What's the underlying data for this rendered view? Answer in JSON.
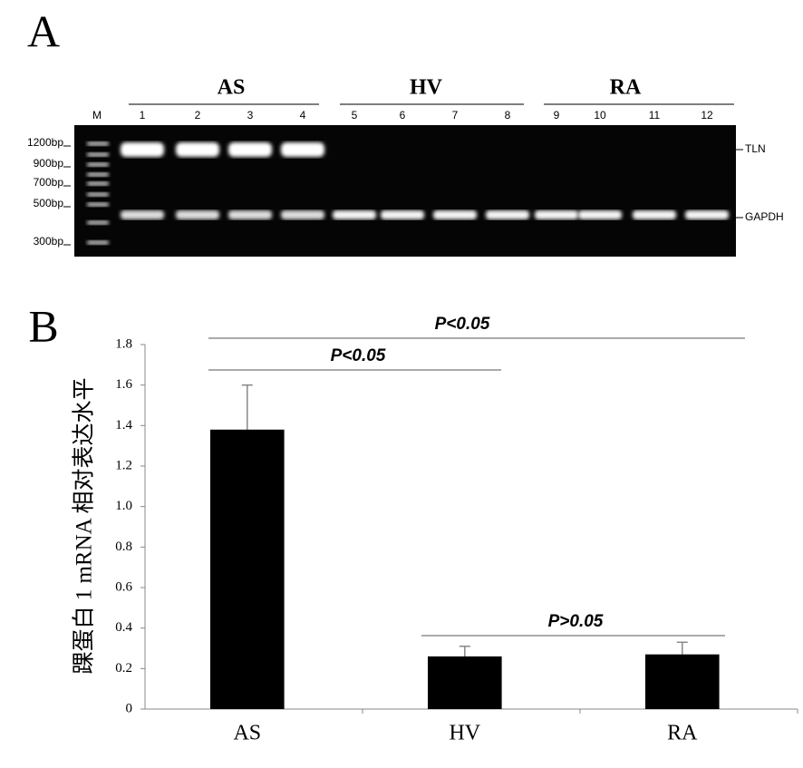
{
  "panel_a": {
    "label": "A",
    "groups": [
      "AS",
      "HV",
      "RA"
    ],
    "lanes": [
      "M",
      "1",
      "2",
      "3",
      "4",
      "5",
      "6",
      "7",
      "8",
      "9",
      "10",
      "11",
      "12"
    ],
    "markers": [
      "1200bp",
      "900bp",
      "700bp",
      "500bp",
      "300bp"
    ],
    "bands": [
      "TLN",
      "GAPDH"
    ]
  },
  "chart_data": {
    "type": "bar",
    "label": "B",
    "y_label": "踝蛋白 1 mRNA 相对表达水平",
    "categories": [
      "AS",
      "HV",
      "RA"
    ],
    "values": [
      1.38,
      0.26,
      0.27
    ],
    "errors": [
      0.22,
      0.05,
      0.06
    ],
    "color": "#000000",
    "ylim": [
      0,
      1.8
    ],
    "yticks": [
      0,
      0.2,
      0.4,
      0.6,
      0.8,
      {
        "value": 1,
        "label": "1.0"
      },
      1.2,
      1.4,
      1.6,
      1.8
    ],
    "annotations": [
      "P<0.05",
      "P<0.05",
      "P>0.05"
    ]
  }
}
